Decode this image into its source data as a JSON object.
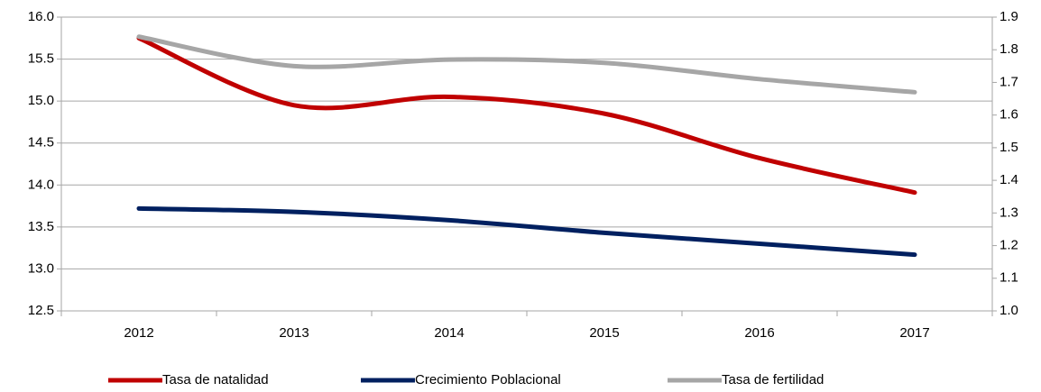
{
  "chart_data": {
    "type": "line",
    "categories": [
      "2012",
      "2013",
      "2014",
      "2015",
      "2016",
      "2017"
    ],
    "series": [
      {
        "name": "Tasa de natalidad",
        "color": "#c00000",
        "values": [
          15.75,
          14.95,
          15.05,
          14.85,
          14.32,
          13.91
        ]
      },
      {
        "name": "Crecimiento Poblacional",
        "color": "#002060",
        "values": [
          13.72,
          13.68,
          13.58,
          13.43,
          13.3,
          13.17
        ]
      },
      {
        "name": "Tasa de fertilidad",
        "color": "#a6a6a6",
        "axis": "y2",
        "values": [
          1.84,
          1.75,
          1.77,
          1.76,
          1.71,
          1.67
        ]
      }
    ],
    "ylim": [
      12.5,
      16.0
    ],
    "yticks": [
      12.5,
      {
        "value": 13,
        "label": "13.0"
      },
      13.5,
      {
        "value": 14,
        "label": "14.0"
      },
      14.5,
      {
        "value": 15,
        "label": "15.0"
      },
      15.5,
      {
        "value": 16,
        "label": "16.0"
      }
    ],
    "y2lim": [
      1.0,
      1.9
    ],
    "y2ticks": [
      {
        "value": 1,
        "label": "1.0"
      },
      1.1,
      1.2,
      1.3,
      1.4,
      1.5,
      1.6,
      1.7,
      1.8,
      1.9
    ],
    "grid": true,
    "smooth": true,
    "legend": "bottom"
  }
}
